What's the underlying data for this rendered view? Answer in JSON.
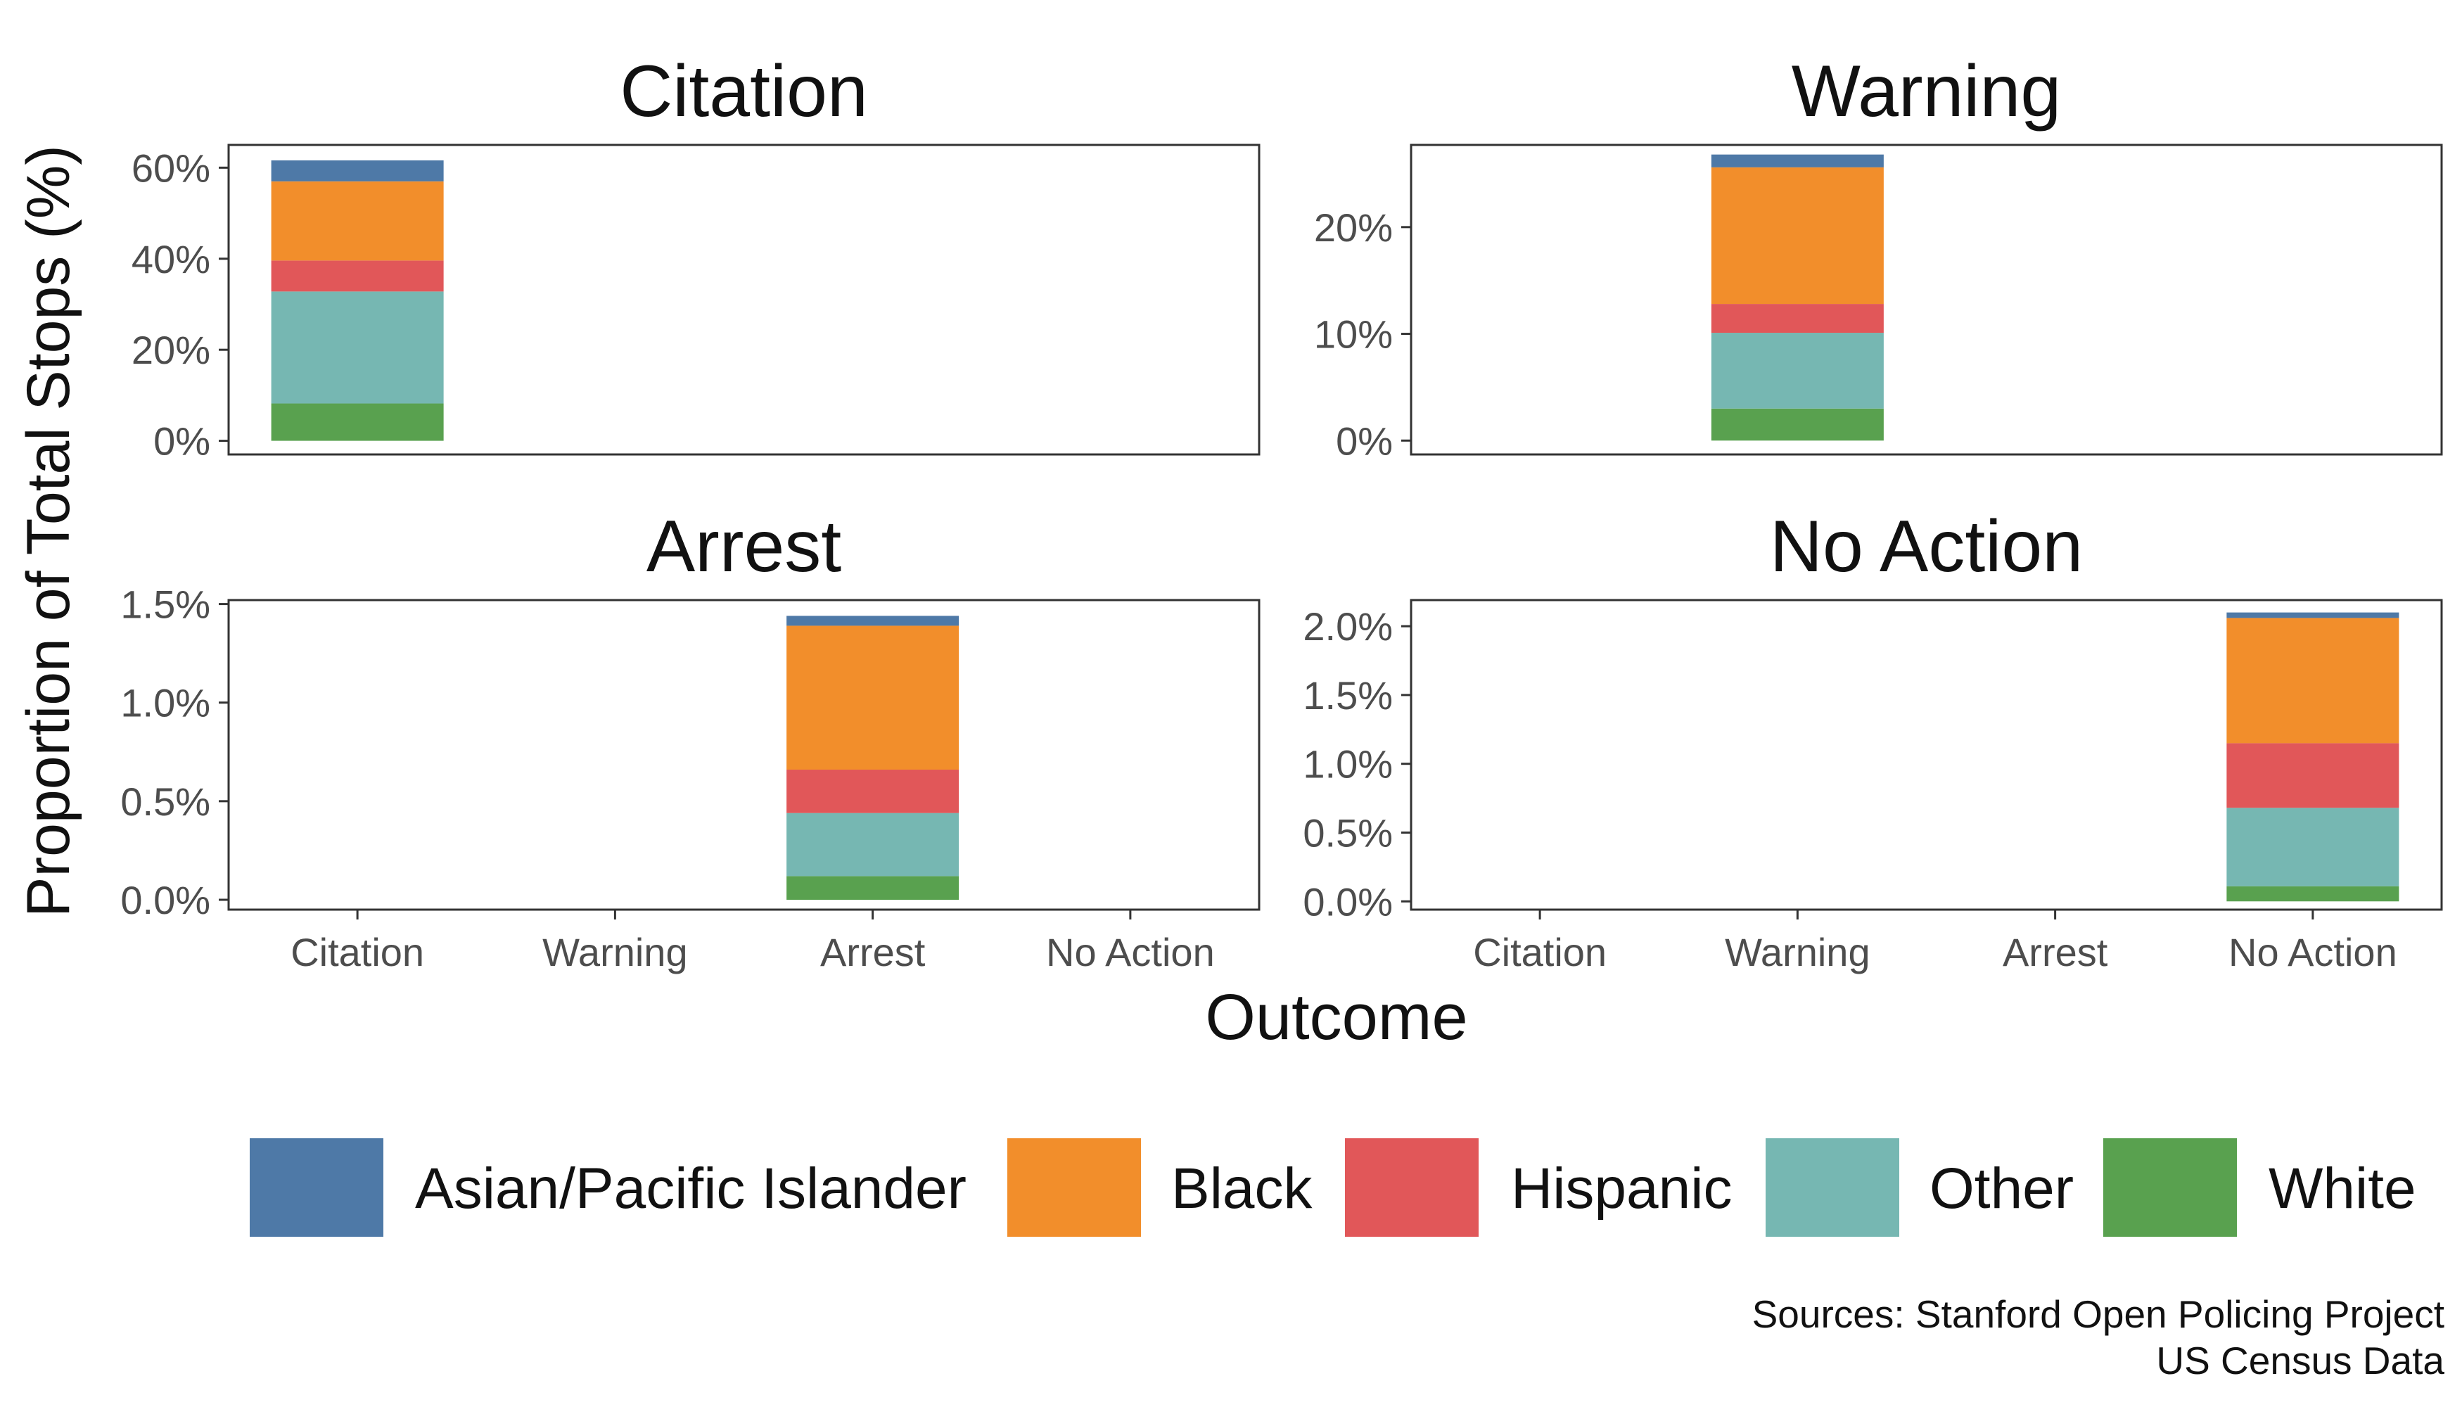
{
  "chart_data": {
    "type": "bar",
    "stacked": true,
    "xlabel": "Outcome",
    "ylabel": "Proportion of Total Stops (%)",
    "categories": [
      "Citation",
      "Warning",
      "Arrest",
      "No Action"
    ],
    "series_order_bottom_to_top": [
      "White",
      "Other",
      "Hispanic",
      "Black",
      "Asian/Pacific Islander"
    ],
    "colors": {
      "Asian/Pacific Islander": "#4E79A7",
      "Black": "#F28E2B",
      "Hispanic": "#E15759",
      "Other": "#76B7B2",
      "White": "#59A14F"
    },
    "panels": [
      {
        "title": "Citation",
        "category": "Citation",
        "ylim": [
          -3,
          65
        ],
        "yticks": [
          0,
          20,
          40,
          60
        ],
        "ytick_labels": [
          "0%",
          "20%",
          "40%",
          "60%"
        ],
        "show_x_ticks": false,
        "values": {
          "White": 8.2,
          "Other": 24.6,
          "Hispanic": 6.8,
          "Black": 17.4,
          "Asian/Pacific Islander": 4.6
        }
      },
      {
        "title": "Warning",
        "category": "Warning",
        "ylim": [
          -1.3,
          27.7
        ],
        "yticks": [
          0,
          10,
          20
        ],
        "ytick_labels": [
          "0%",
          "10%",
          "20%"
        ],
        "show_x_ticks": false,
        "values": {
          "White": 3.0,
          "Other": 7.1,
          "Hispanic": 2.7,
          "Black": 12.8,
          "Asian/Pacific Islander": 1.2
        }
      },
      {
        "title": "Arrest",
        "category": "Arrest",
        "ylim": [
          -0.05,
          1.52
        ],
        "yticks": [
          0,
          0.5,
          1.0,
          1.5
        ],
        "ytick_labels": [
          "0.0%",
          "0.5%",
          "1.0%",
          "1.5%"
        ],
        "show_x_ticks": true,
        "values": {
          "White": 0.12,
          "Other": 0.32,
          "Hispanic": 0.22,
          "Black": 0.73,
          "Asian/Pacific Islander": 0.05
        }
      },
      {
        "title": "No Action",
        "category": "No Action",
        "ylim": [
          -0.06,
          2.19
        ],
        "yticks": [
          0,
          0.5,
          1.0,
          1.5,
          2.0
        ],
        "ytick_labels": [
          "0.0%",
          "0.5%",
          "1.0%",
          "1.5%",
          "2.0%"
        ],
        "show_x_ticks": true,
        "values": {
          "White": 0.11,
          "Other": 0.57,
          "Hispanic": 0.47,
          "Black": 0.91,
          "Asian/Pacific Islander": 0.04
        }
      }
    ],
    "legend": {
      "position": "bottom",
      "entries": [
        "Asian/Pacific Islander",
        "Black",
        "Hispanic",
        "Other",
        "White"
      ]
    },
    "caption": [
      "Sources: Stanford Open Policing Project",
      "US Census Data"
    ]
  }
}
